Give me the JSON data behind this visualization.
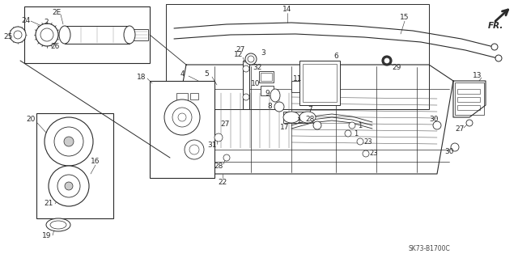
{
  "bg_color": "#ffffff",
  "line_color": "#2a2a2a",
  "fig_width": 6.4,
  "fig_height": 3.19,
  "dpi": 100,
  "watermark": "SK73-B1700C"
}
